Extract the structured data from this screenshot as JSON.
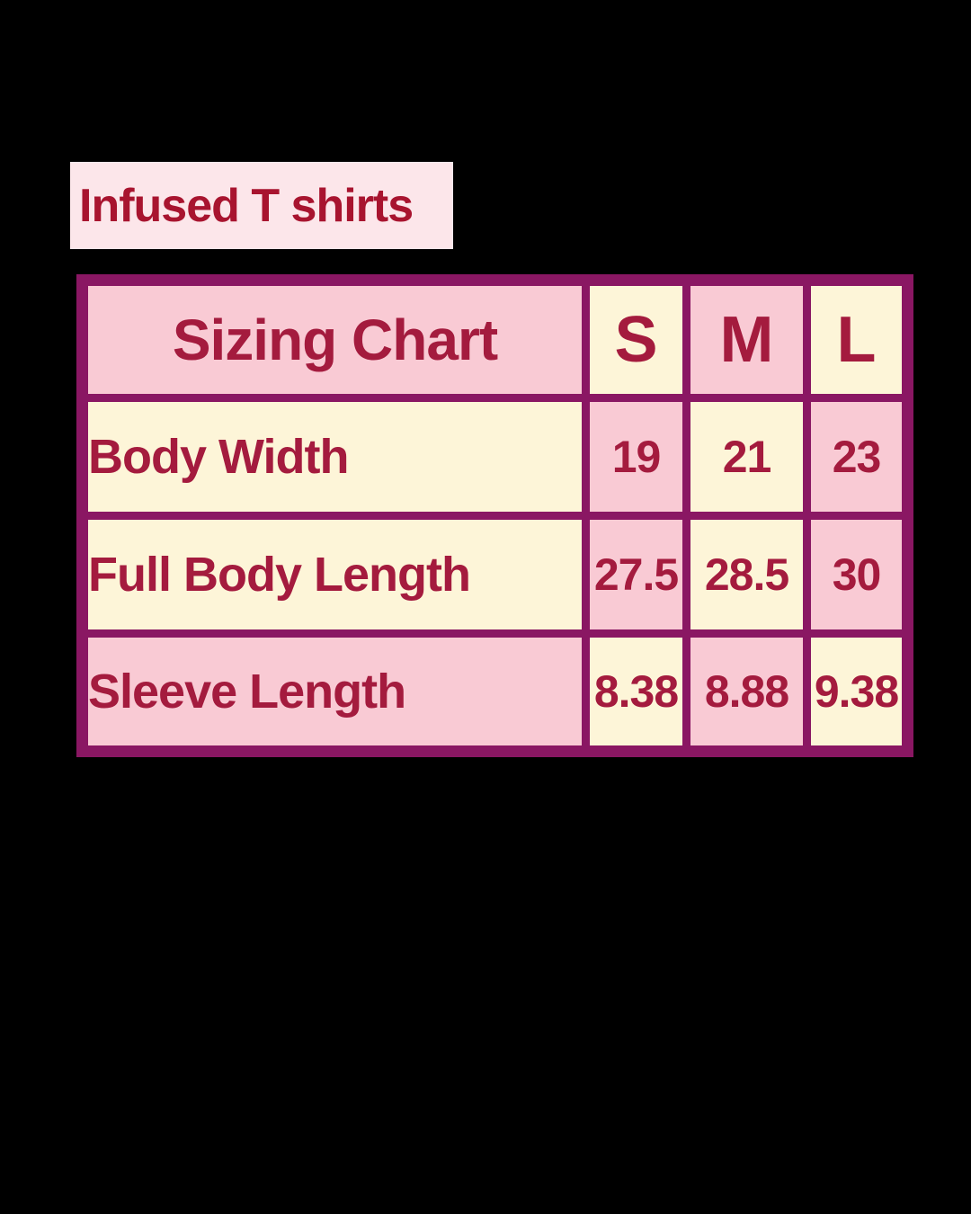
{
  "page": {
    "background_color": "#000000"
  },
  "title": {
    "text": "Infused T shirts",
    "background_color": "#fce6ea",
    "text_color": "#a8142f"
  },
  "table": {
    "border_color": "#8a1763",
    "text_color": "#a41b3e",
    "pink_cell_color": "#f9cad4",
    "cream_cell_color": "#fdf5d8",
    "header": {
      "label": "Sizing Chart",
      "columns": [
        "S",
        "M",
        "L"
      ]
    },
    "rows": [
      {
        "label": "Body Width",
        "values": [
          "19",
          "21",
          "23"
        ]
      },
      {
        "label": "Full Body Length",
        "values": [
          "27.5",
          "28.5",
          "30"
        ]
      },
      {
        "label": "Sleeve Length",
        "values": [
          "8.38",
          "8.88",
          "9.38"
        ]
      }
    ]
  },
  "chart_data": {
    "type": "table",
    "title": "Sizing Chart",
    "subtitle": "Infused T shirts",
    "columns": [
      "S",
      "M",
      "L"
    ],
    "rows": [
      {
        "label": "Body Width",
        "values": [
          19,
          21,
          23
        ]
      },
      {
        "label": "Full Body Length",
        "values": [
          27.5,
          28.5,
          30
        ]
      },
      {
        "label": "Sleeve Length",
        "values": [
          8.38,
          8.88,
          9.38
        ]
      }
    ]
  }
}
